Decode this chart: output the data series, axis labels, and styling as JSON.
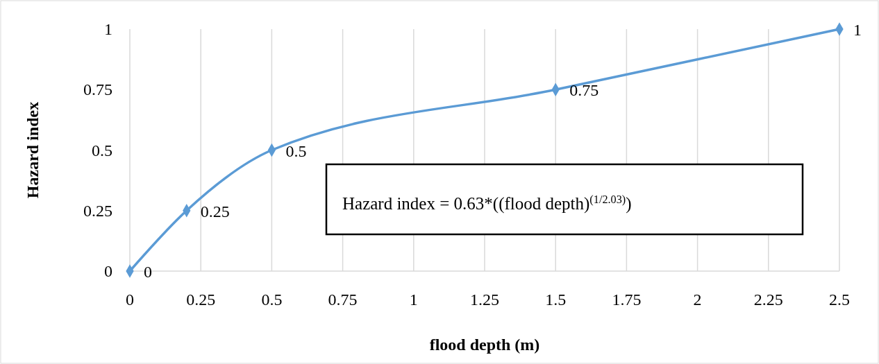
{
  "chart_data": {
    "type": "line",
    "xlabel": "flood depth (m)",
    "ylabel": "Hazard index",
    "x": [
      0,
      0.2,
      0.5,
      1.5,
      2.5
    ],
    "series": [
      {
        "color": "#5b9bd5",
        "values": [
          0,
          0.25,
          0.5,
          0.75,
          1
        ]
      }
    ],
    "xlim": [
      0,
      2.5
    ],
    "xticks": [
      0,
      0.25,
      0.5,
      0.75,
      1,
      1.25,
      1.5,
      1.75,
      2,
      2.25,
      2.5
    ],
    "ylim": [
      0,
      1
    ],
    "yticks": [
      0,
      0.25,
      0.5,
      0.75,
      1
    ],
    "grid": "x",
    "marker": "diamond",
    "line_style": "solid",
    "data_labels": true,
    "annotations": [
      "Hazard index = 0.63*((flood depth)$^{(1/2.03)}$)"
    ]
  }
}
